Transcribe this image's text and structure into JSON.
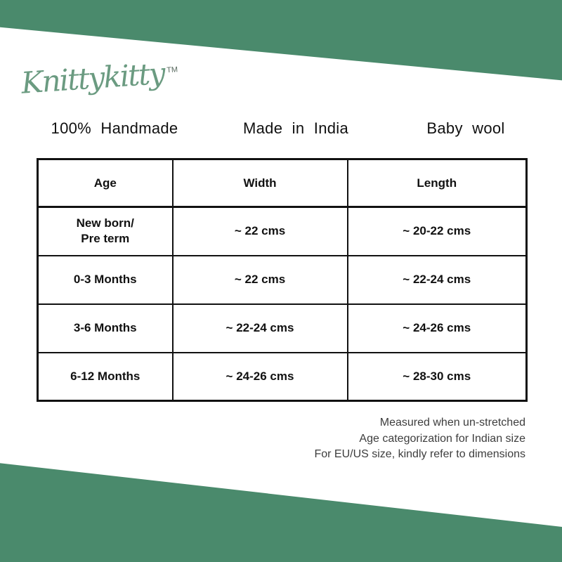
{
  "brand": {
    "logo_text": "Knittykitty",
    "trademark": "TM"
  },
  "features": [
    {
      "label": "100% Handmade"
    },
    {
      "label": "Made in India"
    },
    {
      "label": "Baby wool"
    }
  ],
  "size_table": {
    "headers": [
      "Age",
      "Width",
      "Length"
    ],
    "rows": [
      {
        "age": "New born/\nPre term",
        "width": "~ 22 cms",
        "length": "~ 20-22 cms"
      },
      {
        "age": "0-3 Months",
        "width": "~ 22 cms",
        "length": "~ 22-24 cms"
      },
      {
        "age": "3-6 Months",
        "width": "~ 22-24 cms",
        "length": "~ 24-26 cms"
      },
      {
        "age": "6-12 Months",
        "width": "~ 24-26 cms",
        "length": "~ 28-30 cms"
      }
    ]
  },
  "notes": {
    "lines": [
      "Measured when un-stretched",
      "Age categorization for Indian size",
      "For EU/US size, kindly refer to dimensions"
    ]
  },
  "colors": {
    "band-green": "#4a8a6c",
    "logo-green": "#6b9b81",
    "table-border": "#111111",
    "text-black": "#111111",
    "note-gray": "#3d3d3d"
  }
}
